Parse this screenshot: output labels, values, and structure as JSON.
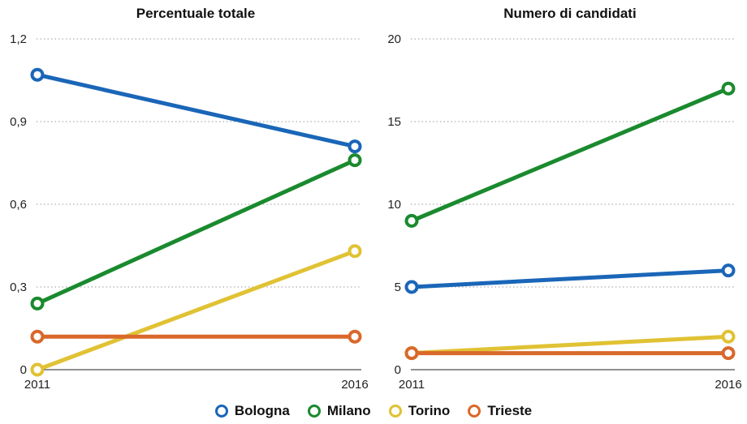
{
  "chart_data": [
    {
      "type": "line",
      "title": "Percentuale totale",
      "x": [
        "2011",
        "2016"
      ],
      "ylim": [
        0,
        1.2
      ],
      "yticks": [
        "0",
        "0,3",
        "0,6",
        "0,9",
        "1,2"
      ],
      "series": [
        {
          "name": "Bologna",
          "color": "#1a66b8",
          "values": [
            1.07,
            0.81
          ]
        },
        {
          "name": "Milano",
          "color": "#1a8a2e",
          "values": [
            0.24,
            0.76
          ]
        },
        {
          "name": "Torino",
          "color": "#e0c234",
          "values": [
            0.0,
            0.43
          ]
        },
        {
          "name": "Trieste",
          "color": "#d9682a",
          "values": [
            0.12,
            0.12
          ]
        }
      ]
    },
    {
      "type": "line",
      "title": "Numero di candidati",
      "x": [
        "2011",
        "2016"
      ],
      "ylim": [
        0,
        20
      ],
      "yticks": [
        "0",
        "5",
        "10",
        "15",
        "20"
      ],
      "series": [
        {
          "name": "Bologna",
          "color": "#1a66b8",
          "values": [
            5,
            6
          ]
        },
        {
          "name": "Milano",
          "color": "#1a8a2e",
          "values": [
            9,
            17
          ]
        },
        {
          "name": "Torino",
          "color": "#e0c234",
          "values": [
            1,
            2
          ]
        },
        {
          "name": "Trieste",
          "color": "#d9682a",
          "values": [
            1,
            1
          ]
        }
      ]
    }
  ],
  "legend": {
    "placement": "bottom-center",
    "items": [
      {
        "label": "Bologna",
        "color": "#1a66b8"
      },
      {
        "label": "Milano",
        "color": "#1a8a2e"
      },
      {
        "label": "Torino",
        "color": "#e0c234"
      },
      {
        "label": "Trieste",
        "color": "#d9682a"
      }
    ]
  }
}
